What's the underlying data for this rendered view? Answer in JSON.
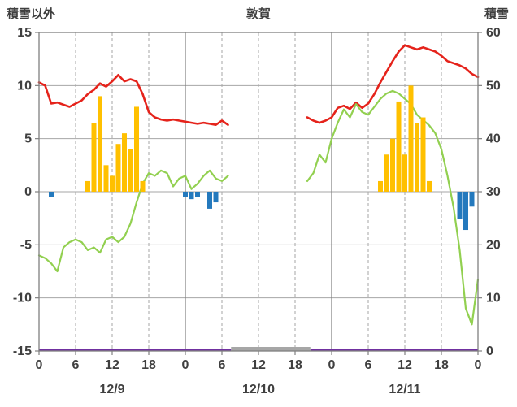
{
  "header": {
    "left_axis_title": "積雪以外",
    "chart_title": "敦賀",
    "right_axis_title": "積雪"
  },
  "colors": {
    "temperature": "#e5231b",
    "snow_depth": "#92d050",
    "precipitation": "#ffc000",
    "negative_bars": "#2479bd",
    "baseline": "#7030a0",
    "missing": "#a6a6a6",
    "grid": "#a6a6a6",
    "frame": "#808080",
    "label": "#3f3f3f"
  },
  "chart_data": {
    "type": "line",
    "title": "敦賀",
    "left_axis": {
      "title": "積雪以外",
      "min": -15,
      "max": 15,
      "tick_labels": [
        "15",
        "10",
        "5",
        "0",
        "-5",
        "-10",
        "-15"
      ],
      "tick_values": [
        15,
        10,
        5,
        0,
        -5,
        -10,
        -15
      ]
    },
    "right_axis": {
      "title": "積雪",
      "min": 0,
      "max": 60,
      "tick_labels": [
        "60",
        "50",
        "40",
        "30",
        "20",
        "10",
        "0"
      ],
      "tick_values": [
        60,
        50,
        40,
        30,
        20,
        10,
        0
      ]
    },
    "x_axis": {
      "total_hours": 72,
      "tick_interval_hours": 6,
      "tick_labels": [
        "0",
        "6",
        "12",
        "18",
        "0",
        "6",
        "12",
        "18",
        "0",
        "6",
        "12",
        "18",
        "0"
      ],
      "day_labels": [
        {
          "label": "12/9",
          "hour": 12
        },
        {
          "label": "12/10",
          "hour": 36
        },
        {
          "label": "12/11",
          "hour": 60
        }
      ],
      "dashed_grid_hours": [
        6,
        12,
        18,
        30,
        36,
        42,
        54,
        60,
        66
      ],
      "solid_grid_hours": [
        24,
        48
      ]
    },
    "h_gridline_values": [
      -10,
      -5,
      0,
      5,
      10
    ],
    "series": [
      {
        "id": "temperature",
        "name": "temperature-line",
        "type": "line",
        "axis": "left",
        "color": "#e5231b",
        "width": 2.6,
        "segments": [
          [
            [
              0,
              10.3
            ],
            [
              1,
              10.0
            ],
            [
              2,
              8.3
            ],
            [
              3,
              8.4
            ],
            [
              4,
              8.2
            ],
            [
              5,
              8.0
            ],
            [
              6,
              8.3
            ],
            [
              7,
              8.6
            ],
            [
              8,
              9.2
            ],
            [
              9,
              9.6
            ],
            [
              10,
              10.2
            ],
            [
              11,
              9.9
            ],
            [
              12,
              10.4
            ],
            [
              13,
              11.0
            ],
            [
              14,
              10.4
            ],
            [
              15,
              10.6
            ],
            [
              16,
              10.4
            ],
            [
              17,
              9.2
            ],
            [
              18,
              7.5
            ],
            [
              19,
              7.0
            ],
            [
              20,
              6.8
            ],
            [
              21,
              6.7
            ],
            [
              22,
              6.8
            ],
            [
              23,
              6.7
            ],
            [
              24,
              6.6
            ],
            [
              25,
              6.5
            ],
            [
              26,
              6.4
            ],
            [
              27,
              6.5
            ],
            [
              28,
              6.4
            ],
            [
              29,
              6.3
            ],
            [
              30,
              6.7
            ],
            [
              31,
              6.3
            ]
          ],
          [
            [
              44,
              7.0
            ],
            [
              45,
              6.7
            ],
            [
              46,
              6.5
            ],
            [
              47,
              6.7
            ],
            [
              48,
              7.0
            ],
            [
              49,
              7.9
            ],
            [
              50,
              8.1
            ],
            [
              51,
              7.8
            ],
            [
              52,
              8.4
            ],
            [
              53,
              7.9
            ],
            [
              54,
              8.3
            ],
            [
              55,
              9.2
            ],
            [
              56,
              10.3
            ],
            [
              57,
              11.3
            ],
            [
              58,
              12.3
            ],
            [
              59,
              13.2
            ],
            [
              60,
              13.8
            ],
            [
              61,
              13.6
            ],
            [
              62,
              13.4
            ],
            [
              63,
              13.6
            ],
            [
              64,
              13.4
            ],
            [
              65,
              13.2
            ],
            [
              66,
              12.8
            ],
            [
              67,
              12.3
            ],
            [
              68,
              12.1
            ],
            [
              69,
              11.9
            ],
            [
              70,
              11.6
            ],
            [
              71,
              11.1
            ],
            [
              72,
              10.8
            ]
          ]
        ]
      },
      {
        "id": "snow_depth",
        "name": "snow-depth-line",
        "type": "line",
        "axis": "right",
        "color": "#92d050",
        "width": 2.2,
        "segments": [
          [
            [
              0,
              18
            ],
            [
              1,
              17.5
            ],
            [
              2,
              16.5
            ],
            [
              3,
              15
            ],
            [
              4,
              19.5
            ],
            [
              5,
              20.5
            ],
            [
              6,
              21
            ],
            [
              7,
              20.5
            ],
            [
              8,
              19
            ],
            [
              9,
              19.5
            ],
            [
              10,
              18.5
            ],
            [
              11,
              21
            ],
            [
              12,
              21.5
            ],
            [
              13,
              20.5
            ],
            [
              14,
              21.5
            ],
            [
              15,
              24
            ],
            [
              16,
              28
            ],
            [
              17,
              31.5
            ],
            [
              18,
              33.5
            ],
            [
              19,
              33
            ],
            [
              20,
              34
            ],
            [
              21,
              33.5
            ],
            [
              22,
              31
            ],
            [
              23,
              32.5
            ],
            [
              24,
              33
            ],
            [
              25,
              30.5
            ],
            [
              26,
              31.5
            ],
            [
              27,
              33
            ],
            [
              28,
              34
            ],
            [
              29,
              32.5
            ],
            [
              30,
              32
            ],
            [
              31,
              33
            ]
          ],
          [
            [
              44,
              32
            ],
            [
              45,
              33.5
            ],
            [
              46,
              37
            ],
            [
              47,
              35.5
            ],
            [
              48,
              40
            ],
            [
              49,
              43
            ],
            [
              50,
              45.5
            ],
            [
              51,
              44
            ],
            [
              52,
              46.5
            ],
            [
              53,
              45
            ],
            [
              54,
              44.5
            ],
            [
              55,
              46
            ],
            [
              56,
              47.5
            ],
            [
              57,
              48.5
            ],
            [
              58,
              49
            ],
            [
              59,
              48.5
            ],
            [
              60,
              47.5
            ],
            [
              61,
              46.5
            ],
            [
              62,
              44.5
            ],
            [
              63,
              43.5
            ],
            [
              64,
              42.5
            ],
            [
              65,
              41
            ],
            [
              66,
              38
            ],
            [
              67,
              33
            ],
            [
              68,
              27
            ],
            [
              69,
              19
            ],
            [
              70,
              8
            ],
            [
              71,
              5
            ],
            [
              72,
              13.5
            ]
          ]
        ]
      },
      {
        "id": "precipitation",
        "name": "precipitation-bars",
        "type": "bar",
        "axis": "left",
        "color": "#ffc000",
        "points": [
          [
            8,
            1
          ],
          [
            9,
            6.5
          ],
          [
            10,
            9
          ],
          [
            11,
            2.5
          ],
          [
            12,
            1.5
          ],
          [
            13,
            4.5
          ],
          [
            14,
            5.5
          ],
          [
            15,
            4
          ],
          [
            16,
            8
          ],
          [
            17,
            1
          ],
          [
            56,
            1
          ],
          [
            57,
            3.5
          ],
          [
            58,
            5
          ],
          [
            59,
            8.5
          ],
          [
            60,
            3.5
          ],
          [
            61,
            10
          ],
          [
            62,
            6.5
          ],
          [
            63,
            7
          ],
          [
            64,
            1
          ]
        ]
      },
      {
        "id": "negative_bars",
        "name": "negative-bars",
        "type": "bar",
        "axis": "left",
        "color": "#2479bd",
        "points": [
          [
            2,
            -0.5
          ],
          [
            24,
            -0.5
          ],
          [
            25,
            -0.7
          ],
          [
            26,
            -0.5
          ],
          [
            28,
            -1.6
          ],
          [
            29,
            -1.0
          ],
          [
            69,
            -2.6
          ],
          [
            70,
            -3.6
          ],
          [
            71,
            -1.4
          ]
        ]
      },
      {
        "id": "baseline",
        "name": "baseline-line",
        "type": "flatline",
        "axis": "left",
        "color": "#7030a0",
        "width": 2.5,
        "value": -15,
        "ranges": [
          [
            0,
            31.5
          ],
          [
            44.5,
            72
          ]
        ]
      },
      {
        "id": "missing_data",
        "name": "missing-data-segment",
        "type": "flatline",
        "axis": "left",
        "color": "#a6a6a6",
        "width": 5,
        "value": -15,
        "ranges": [
          [
            31.5,
            44.5
          ]
        ]
      }
    ]
  }
}
